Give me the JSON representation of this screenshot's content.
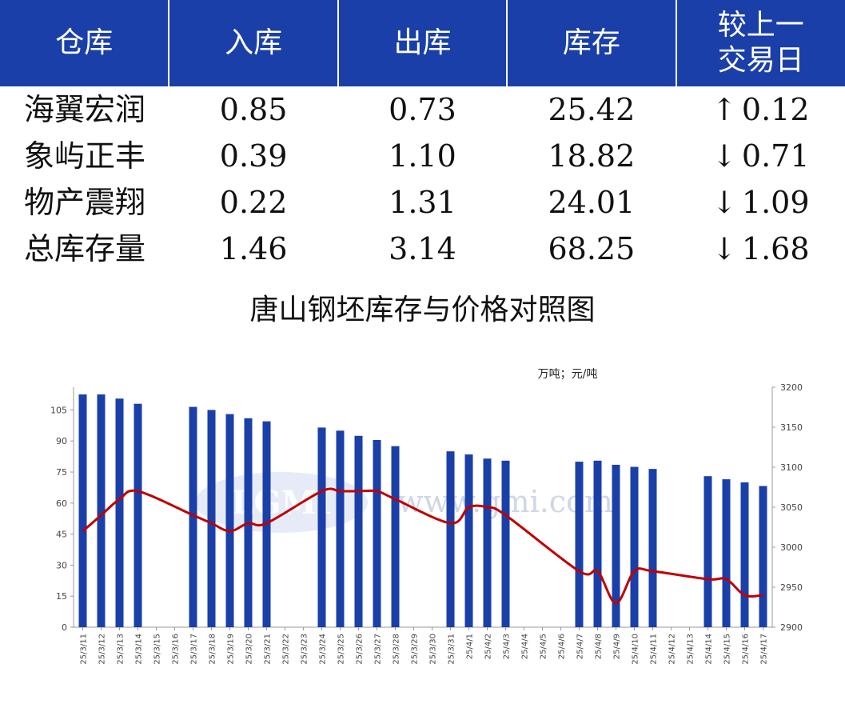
{
  "table": {
    "headers": [
      "仓库",
      "入库",
      "出库",
      "库存",
      "较上一交易日"
    ],
    "rows": [
      {
        "name": "海翼宏润",
        "in": "0.85",
        "out": "0.73",
        "stock": "25.42",
        "dir": "up",
        "change": "0.12"
      },
      {
        "name": "象屿正丰",
        "in": "0.39",
        "out": "1.10",
        "stock": "18.82",
        "dir": "down",
        "change": "0.71"
      },
      {
        "name": "物产震翔",
        "in": "0.22",
        "out": "1.31",
        "stock": "24.01",
        "dir": "down",
        "change": "1.09"
      },
      {
        "name": "总库存量",
        "in": "1.46",
        "out": "3.14",
        "stock": "68.25",
        "dir": "down",
        "change": "1.68"
      }
    ],
    "colors": {
      "header_bg": "#1a3fa8",
      "up": "#e00000",
      "down": "#1a8a1a"
    }
  },
  "chart_data": {
    "type": "bar+line",
    "title": "唐山钢坯库存与价格对照图",
    "unit_label": "万吨；元/吨",
    "watermark": "www.gmi.com",
    "categories": [
      "25/3/11",
      "25/3/12",
      "25/3/13",
      "25/3/14",
      "25/3/15",
      "25/3/16",
      "25/3/17",
      "25/3/18",
      "25/3/19",
      "25/3/20",
      "25/3/21",
      "25/3/22",
      "25/3/23",
      "25/3/24",
      "25/3/25",
      "25/3/26",
      "25/3/27",
      "25/3/28",
      "25/3/29",
      "25/3/30",
      "25/3/31",
      "25/4/1",
      "25/4/2",
      "25/4/3",
      "25/4/4",
      "25/4/5",
      "25/4/6",
      "25/4/7",
      "25/4/8",
      "25/4/9",
      "25/4/10",
      "25/4/11",
      "25/4/12",
      "25/4/13",
      "25/4/14",
      "25/4/15",
      "25/4/16",
      "25/4/17"
    ],
    "y_left": {
      "min": 0,
      "max": 116,
      "ticks": [
        0,
        15,
        30,
        45,
        60,
        75,
        90,
        105
      ]
    },
    "y_right": {
      "min": 2900,
      "max": 3200,
      "ticks": [
        2900,
        2950,
        3000,
        3050,
        3100,
        3150,
        3200
      ]
    },
    "series": [
      {
        "type": "bar",
        "axis": "left",
        "color": "#1a3fa8",
        "values": [
          112.5,
          112.5,
          110.5,
          108,
          null,
          null,
          106.5,
          105,
          103,
          101,
          99.5,
          null,
          null,
          96.5,
          95,
          92.5,
          90.5,
          87.5,
          null,
          null,
          85,
          83.5,
          81.5,
          80.5,
          null,
          null,
          null,
          80,
          80.5,
          78.5,
          77.5,
          76.5,
          null,
          null,
          73,
          71.5,
          70,
          68.25
        ]
      },
      {
        "type": "line",
        "axis": "right",
        "color": "#c00000",
        "x": [
          "25/3/11",
          "25/3/12",
          "25/3/13",
          "25/3/14",
          "25/3/17",
          "25/3/18",
          "25/3/19",
          "25/3/20",
          "25/3/21",
          "25/3/24",
          "25/3/25",
          "25/3/26",
          "25/3/27",
          "25/3/28",
          "25/3/31",
          "25/4/1",
          "25/4/2",
          "25/4/3",
          "25/4/7",
          "25/4/8",
          "25/4/9",
          "25/4/10",
          "25/4/11",
          "25/4/14",
          "25/4/15",
          "25/4/16",
          "25/4/17"
        ],
        "values": [
          3020,
          3040,
          3060,
          3070,
          3040,
          3030,
          3020,
          3030,
          3030,
          3070,
          3070,
          3070,
          3070,
          3060,
          3030,
          3050,
          3050,
          3040,
          2970,
          2970,
          2930,
          2970,
          2970,
          2960,
          2960,
          2940,
          2940
        ]
      }
    ]
  }
}
